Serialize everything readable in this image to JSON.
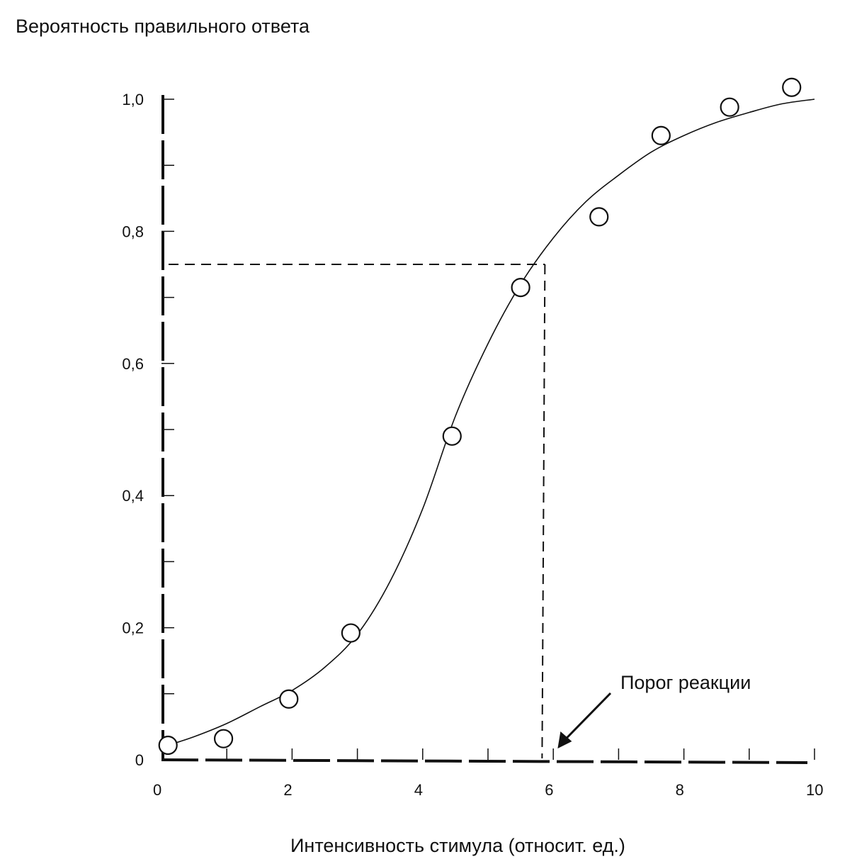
{
  "chart_data": {
    "type": "scatter",
    "title": "",
    "ylabel": "Вероятность правильного ответа",
    "xlabel": "Интенсивность стимула (относит. ед.)",
    "xlim": [
      0,
      10
    ],
    "ylim": [
      0,
      1.0
    ],
    "x_ticks": [
      0,
      2,
      4,
      6,
      8,
      10
    ],
    "x_tick_labels": [
      "0",
      "2",
      "4",
      "6",
      "8",
      "10"
    ],
    "y_ticks": [
      0,
      0.2,
      0.4,
      0.6,
      0.8,
      1.0
    ],
    "y_tick_labels": [
      "0",
      "0,2",
      "0,4",
      "0,6",
      "0,8",
      "1,0"
    ],
    "points": {
      "x": [
        0.1,
        0.95,
        1.95,
        2.9,
        4.45,
        5.5,
        6.7,
        7.65,
        8.7,
        9.65
      ],
      "y": [
        0.022,
        0.032,
        0.092,
        0.192,
        0.49,
        0.715,
        0.822,
        0.945,
        0.988,
        1.018
      ]
    },
    "fit_curve": {
      "x": [
        0.1,
        0.5,
        1,
        1.5,
        2,
        2.5,
        3,
        3.5,
        4,
        4.5,
        5,
        5.5,
        6,
        6.5,
        7,
        7.5,
        8,
        8.5,
        9,
        9.5,
        10
      ],
      "y": [
        0.022,
        0.035,
        0.055,
        0.08,
        0.105,
        0.14,
        0.19,
        0.27,
        0.38,
        0.52,
        0.63,
        0.72,
        0.79,
        0.845,
        0.885,
        0.92,
        0.945,
        0.965,
        0.98,
        0.993,
        1.0
      ]
    },
    "threshold": {
      "x": 5.85,
      "y": 0.75
    },
    "annotation": "Порог реакции",
    "grid": false
  }
}
